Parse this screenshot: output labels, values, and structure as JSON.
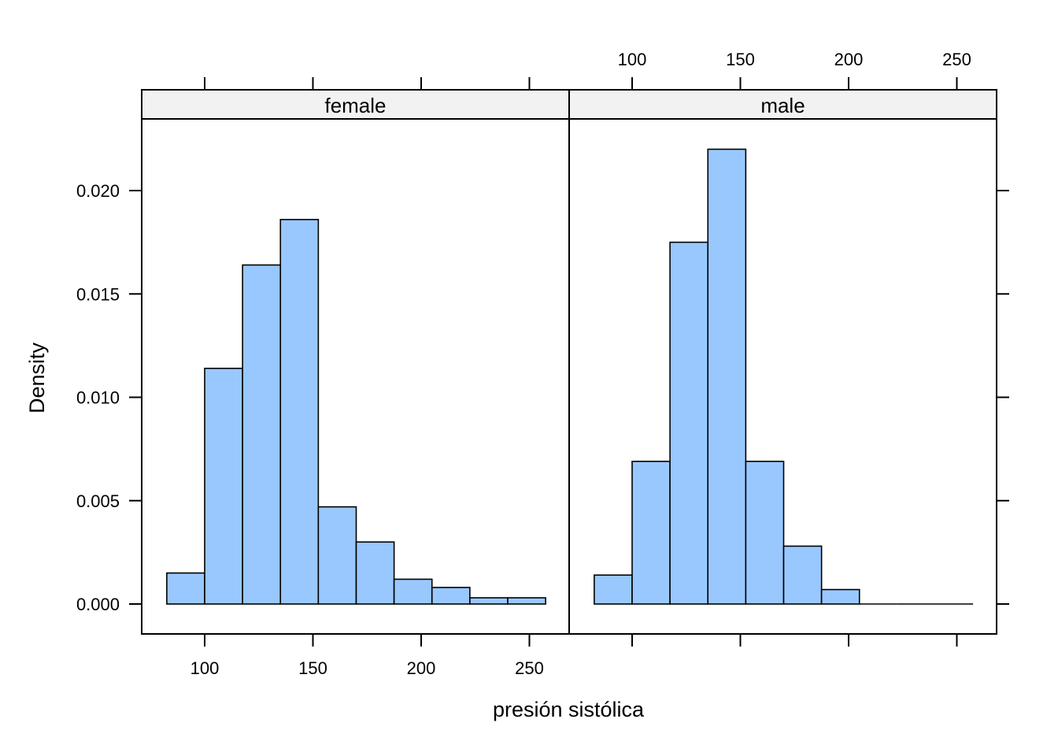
{
  "chart_data": {
    "type": "bar",
    "subtype": "histogram",
    "xlabel": "presión sistólica",
    "ylabel": "Density",
    "xlim": [
      77,
      275
    ],
    "ylim": [
      -0.0015,
      0.0235
    ],
    "x_ticks": [
      100,
      150,
      200,
      250
    ],
    "y_ticks": [
      0.0,
      0.005,
      0.01,
      0.015,
      0.02
    ],
    "y_tick_labels": [
      "0.000",
      "0.005",
      "0.010",
      "0.015",
      "0.020"
    ],
    "bar_color": "#99c8ff",
    "strip_color": "#f2f2f2",
    "panels": [
      {
        "name": "female",
        "bins": [
          {
            "x0": 82.5,
            "x1": 100,
            "density": 0.0015
          },
          {
            "x0": 100,
            "x1": 117.5,
            "density": 0.0114
          },
          {
            "x0": 117.5,
            "x1": 135,
            "density": 0.0164
          },
          {
            "x0": 135,
            "x1": 152.5,
            "density": 0.0186
          },
          {
            "x0": 152.5,
            "x1": 170,
            "density": 0.0047
          },
          {
            "x0": 170,
            "x1": 187.5,
            "density": 0.003
          },
          {
            "x0": 187.5,
            "x1": 205,
            "density": 0.0012
          },
          {
            "x0": 205,
            "x1": 222.5,
            "density": 0.0008
          },
          {
            "x0": 222.5,
            "x1": 240,
            "density": 0.0003
          },
          {
            "x0": 240,
            "x1": 257.5,
            "density": 0.0003
          }
        ]
      },
      {
        "name": "male",
        "bins": [
          {
            "x0": 82.5,
            "x1": 100,
            "density": 0.0014
          },
          {
            "x0": 100,
            "x1": 117.5,
            "density": 0.0069
          },
          {
            "x0": 117.5,
            "x1": 135,
            "density": 0.0175
          },
          {
            "x0": 135,
            "x1": 152.5,
            "density": 0.022
          },
          {
            "x0": 152.5,
            "x1": 170,
            "density": 0.0069
          },
          {
            "x0": 170,
            "x1": 187.5,
            "density": 0.0028
          },
          {
            "x0": 187.5,
            "x1": 205,
            "density": 0.0007
          },
          {
            "x0": 205,
            "x1": 222.5,
            "density": 0
          },
          {
            "x0": 222.5,
            "x1": 240,
            "density": 0
          },
          {
            "x0": 240,
            "x1": 257.5,
            "density": 0
          }
        ]
      }
    ]
  }
}
